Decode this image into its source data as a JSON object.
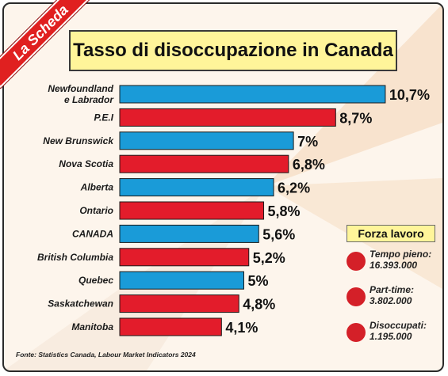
{
  "corner_label": "La Scheda",
  "chart_data": {
    "type": "bar",
    "orientation": "horizontal",
    "title": "Tasso di disoccupazione in Canada",
    "categories": [
      "Newfoundland e Labrador",
      "P.E.I",
      "New Brunswick",
      "Nova Scotia",
      "Alberta",
      "Ontario",
      "CANADA",
      "British Columbia",
      "Quebec",
      "Saskatchewan",
      "Manitoba"
    ],
    "values": [
      10.7,
      8.7,
      7.0,
      6.8,
      6.2,
      5.8,
      5.6,
      5.2,
      5.0,
      4.8,
      4.1
    ],
    "value_labels": [
      "10,7%",
      "8,7%",
      "7%",
      "6,8%",
      "6,2%",
      "5,8%",
      "5,6%",
      "5,2%",
      "5%",
      "4,8%",
      "4,1%"
    ],
    "bar_colors": [
      "#1a9bd8",
      "#e31c2b",
      "#1a9bd8",
      "#e31c2b",
      "#1a9bd8",
      "#e31c2b",
      "#1a9bd8",
      "#e31c2b",
      "#1a9bd8",
      "#e31c2b",
      "#e31c2b"
    ],
    "xlim": [
      0,
      11
    ],
    "grid": false
  },
  "legend": {
    "title": "Forza lavoro",
    "items": [
      {
        "label": "Tempo pieno:",
        "value": "16.393.000"
      },
      {
        "label": "Part-time:",
        "value": "3.802.000"
      },
      {
        "label": "Disoccupati:",
        "value": "1.195.000"
      }
    ]
  },
  "source": "Fonte: Statistics Canada, Labour Market Indicators 2024",
  "colors": {
    "blue": "#1a9bd8",
    "red": "#e31c2b",
    "title_bg": "#fff59a",
    "dot": "#d42028"
  }
}
